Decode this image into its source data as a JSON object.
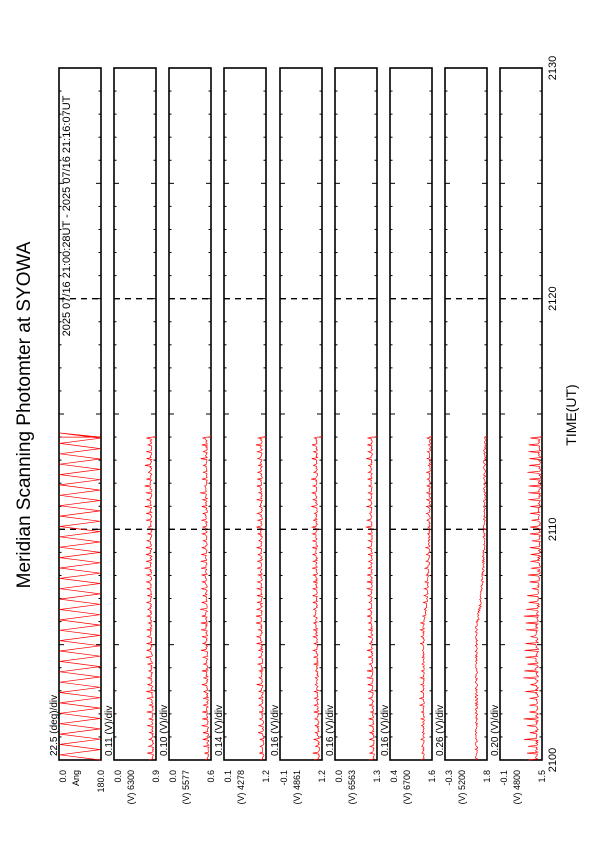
{
  "chart_data": {
    "type": "line",
    "orientation": "rotated-90-counterclockwise",
    "title": "Meridian Scanning Photomter at SYOWA",
    "subtitle": "2025 07/16 21:00:28UT - 2025 07/16 21:16:07UT",
    "xlabel": "TIME(UT)",
    "xlim": [
      2100,
      2130
    ],
    "x_ticks": [
      "2100",
      "2110",
      "2120",
      "2130"
    ],
    "x_dashed_gridlines": [
      2110,
      2120
    ],
    "data_end": 2114.0,
    "line_color": "#ff0000",
    "panels": [
      {
        "scale_label": "22.5 (deg)/div",
        "ylim": [
          0.0,
          180.0
        ],
        "ytick_labels": [
          "0.0",
          "180.0"
        ],
        "series_label": "Ang",
        "kind": "scan",
        "start_level": 0.5,
        "plateau": 0.5,
        "noise": 0.0,
        "spike": 0.0
      },
      {
        "scale_label": "0.11 (V)/div",
        "ylim": [
          0.0,
          0.9
        ],
        "ytick_labels": [
          "0.0",
          "0.9"
        ],
        "series_label": "(V) 6300",
        "kind": "ramp",
        "start_level": 0.07,
        "plateau": 0.12,
        "noise": 0.025,
        "spike": 0.14
      },
      {
        "scale_label": "0.10 (V)/div",
        "ylim": [
          0.0,
          0.6
        ],
        "ytick_labels": [
          "0.0",
          "0.6"
        ],
        "series_label": "(V) 5577",
        "kind": "ramp",
        "start_level": 0.07,
        "plateau": 0.11,
        "noise": 0.025,
        "spike": 0.14
      },
      {
        "scale_label": "0.14 (V)/div",
        "ylim": [
          0.1,
          1.2
        ],
        "ytick_labels": [
          "0.1",
          "1.2"
        ],
        "series_label": "(V) 4278",
        "kind": "ramp",
        "start_level": 0.07,
        "plateau": 0.11,
        "noise": 0.025,
        "spike": 0.12
      },
      {
        "scale_label": "0.16 (V)/div",
        "ylim": [
          -0.1,
          1.2
        ],
        "ytick_labels": [
          "-0.1",
          "1.2"
        ],
        "series_label": "(V) 4861",
        "kind": "ramp",
        "start_level": 0.08,
        "plateau": 0.13,
        "noise": 0.025,
        "spike": 0.12
      },
      {
        "scale_label": "0.16 (V)/div",
        "ylim": [
          0.0,
          1.3
        ],
        "ytick_labels": [
          "0.0",
          "1.3"
        ],
        "series_label": "(V) 6563",
        "kind": "ramp",
        "start_level": 0.08,
        "plateau": 0.13,
        "noise": 0.02,
        "spike": 0.12
      },
      {
        "scale_label": "0.16 (V)/div",
        "ylim": [
          0.4,
          1.6
        ],
        "ytick_labels": [
          "0.4",
          "1.6"
        ],
        "series_label": "(V) 6700",
        "kind": "decay",
        "start_level": 0.2,
        "plateau": 0.05,
        "noise": 0.02,
        "spike": 0.08
      },
      {
        "scale_label": "0.26 (V)/div",
        "ylim": [
          -0.3,
          1.8
        ],
        "ytick_labels": [
          "-0.3",
          "1.8"
        ],
        "series_label": "(V) 5200",
        "kind": "decay",
        "start_level": 0.25,
        "plateau": 0.05,
        "noise": 0.03,
        "spike": 0.0
      },
      {
        "scale_label": "0.20 (V)/div",
        "ylim": [
          -0.1,
          1.5
        ],
        "ytick_labels": [
          "-0.1",
          "1.5"
        ],
        "series_label": "(V) 4800",
        "kind": "decay",
        "start_level": 0.12,
        "plateau": 0.06,
        "noise": 0.035,
        "spike": 0.3
      }
    ]
  }
}
